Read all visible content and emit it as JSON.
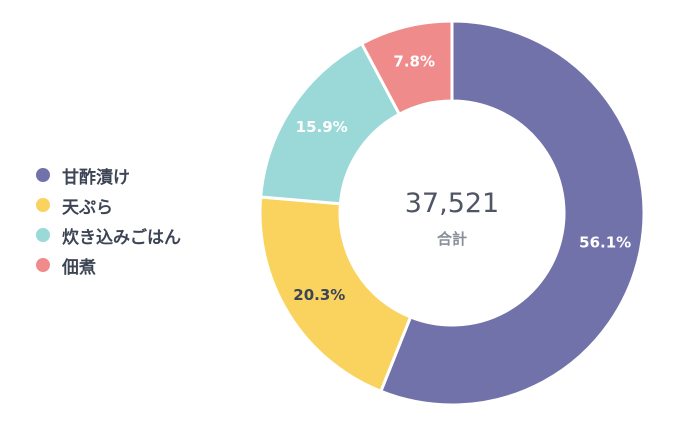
{
  "chart_data": {
    "type": "pie",
    "donut": true,
    "legend_position": "left",
    "total": "37,521",
    "total_label": "合計",
    "slices": [
      {
        "name": "甘酢漬け",
        "value": 56.1,
        "label": "56.1%",
        "color": "#7272ab",
        "label_color": "#ffffff"
      },
      {
        "name": "天ぷら",
        "value": 20.3,
        "label": "20.3%",
        "color": "#fad35f",
        "label_color": "#3d4555"
      },
      {
        "name": "炊き込みごはん",
        "value": 15.9,
        "label": "15.9%",
        "color": "#9ad9d7",
        "label_color": "#ffffff"
      },
      {
        "name": "佃煮",
        "value": 7.8,
        "label": "7.8%",
        "color": "#ef8c8b",
        "label_color": "#ffffff"
      }
    ]
  }
}
